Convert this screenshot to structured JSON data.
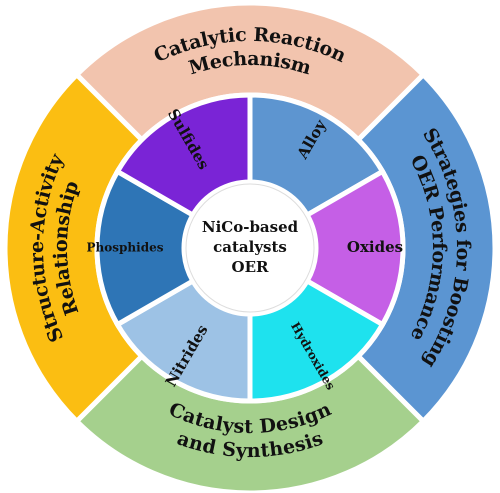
{
  "center": {
    "lines": [
      "NiCo-based",
      "catalysts",
      "OER"
    ],
    "fill": "#ffffff"
  },
  "outer_ring": [
    {
      "id": "mechanism",
      "lines": [
        "Catalytic Reaction",
        "Mechanism"
      ],
      "color": "#f2c4ae"
    },
    {
      "id": "strategies",
      "lines": [
        "Strategies for Boosting",
        "OER Performance"
      ],
      "color": "#5b95d2"
    },
    {
      "id": "design",
      "lines": [
        "Catalyst Design",
        "and Synthesis"
      ],
      "color": "#a5d08d"
    },
    {
      "id": "structure",
      "lines": [
        "Structure-Activity",
        "Relationship"
      ],
      "color": "#fbbe12"
    }
  ],
  "inner_ring": [
    {
      "id": "alloy",
      "label": "Alloy",
      "color": "#5d95d0"
    },
    {
      "id": "oxides",
      "label": "Oxides",
      "color": "#c55fe6"
    },
    {
      "id": "hydroxides",
      "label": "Hydroxides",
      "color": "#1ee2ee"
    },
    {
      "id": "nitrides",
      "label": "Nitrides",
      "color": "#9dc2e5"
    },
    {
      "id": "phosphides",
      "label": "Phosphides",
      "color": "#2e75b6"
    },
    {
      "id": "sulfides",
      "label": "Sulfides",
      "color": "#7a24d6"
    }
  ]
}
